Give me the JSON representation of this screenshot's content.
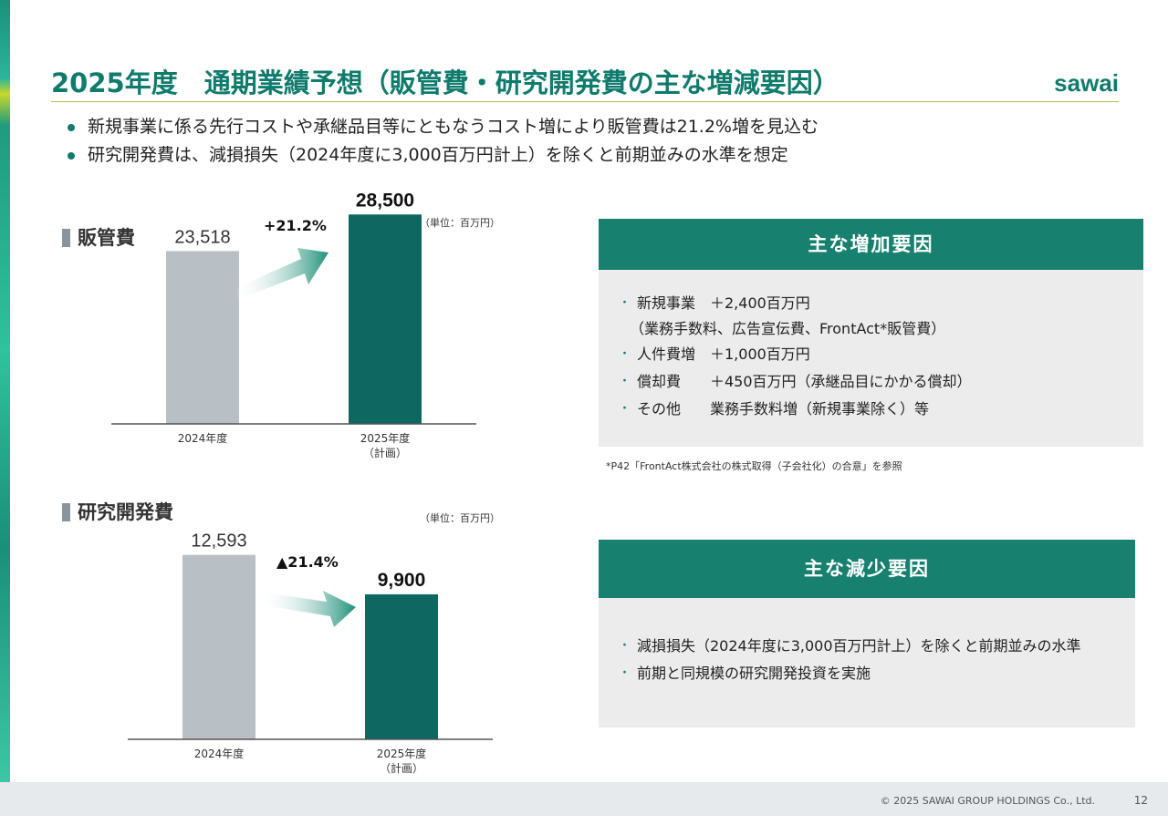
{
  "title": "2025年度　通期業績予想（販管費・研究開発費の主な増減要因）",
  "logo": "sawai",
  "bullets": [
    "新規事業に係る先行コストや承継品目等にともなうコスト増により販管費は21.2%増を見込む",
    "研究開発費は、減損損失（2024年度に3,000百万円計上）を除くと前期並みの水準を想定"
  ],
  "colors": {
    "accent": "#17806f",
    "bar_prev": "#b8bfc5",
    "bar_plan": "#0e6760"
  },
  "chart_data": [
    {
      "type": "bar",
      "title": "販管費",
      "unit": "（単位：百万円）",
      "change_label": "+21.2%",
      "categories": [
        "2024年度",
        "2025年度\n（計画）"
      ],
      "values": [
        23518,
        28500
      ],
      "value_labels": [
        "23,518",
        "28,500"
      ],
      "ylim": [
        0,
        33000
      ]
    },
    {
      "type": "bar",
      "title": "研究開発費",
      "unit": "（単位：百万円）",
      "change_label": "▲21.4%",
      "categories": [
        "2024年度",
        "2025年度\n（計画）"
      ],
      "values": [
        12593,
        9900
      ],
      "value_labels": [
        "12,593",
        "9,900"
      ],
      "ylim": [
        0,
        15500
      ]
    }
  ],
  "increase_box": {
    "heading": "主な増加要因",
    "items": [
      {
        "text": "新規事業　＋2,400百万円",
        "sub": "（業務手数料、広告宣伝費、FrontAct*販管費）"
      },
      {
        "text": "人件費増　＋1,000百万円",
        "sub": ""
      },
      {
        "text": "償却費　　＋450百万円（承継品目にかかる償却）",
        "sub": ""
      },
      {
        "text": "その他　　業務手数料増（新規事業除く）等",
        "sub": ""
      }
    ],
    "note": "*P42「FrontAct株式会社の株式取得（子会社化）の合意」を参照"
  },
  "decrease_box": {
    "heading": "主な減少要因",
    "items": [
      {
        "text": "減損損失（2024年度に3,000百万円計上）を除くと前期並みの水準",
        "sub": ""
      },
      {
        "text": "前期と同規模の研究開発投資を実施",
        "sub": ""
      }
    ]
  },
  "footer": {
    "copyright": "© 2025 SAWAI GROUP HOLDINGS Co., Ltd.",
    "page": "12"
  }
}
